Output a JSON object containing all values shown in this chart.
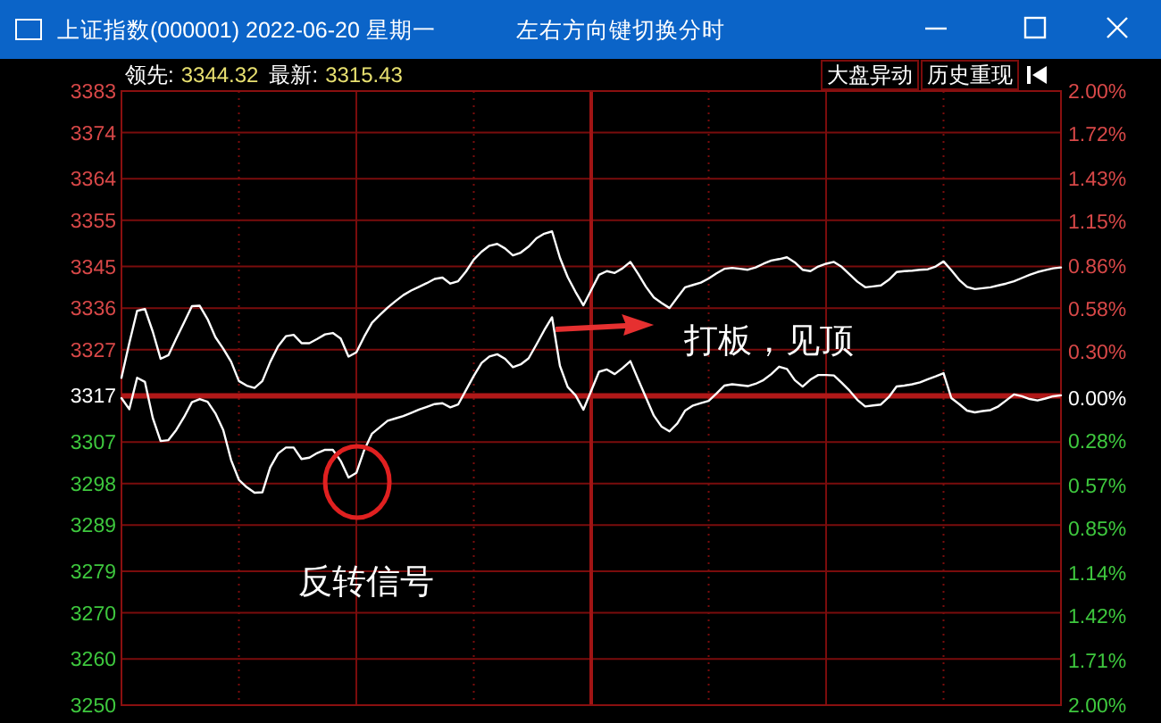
{
  "chart_data": {
    "type": "line",
    "title": "上证指数(000001) 2022-06-20 星期一",
    "subtitle": "左右方向键切换分时",
    "categories": [
      null,
      null,
      null,
      null,
      null,
      null,
      null,
      null,
      null,
      null,
      null,
      null,
      null,
      null,
      null,
      null,
      null,
      null,
      null,
      null,
      null,
      null,
      null,
      null,
      null,
      null,
      null,
      null,
      null,
      null,
      null,
      null,
      null,
      null,
      null,
      null,
      null,
      null,
      null,
      null,
      null,
      null,
      null,
      null,
      null,
      null,
      null,
      null,
      null,
      null,
      null,
      null,
      null,
      null,
      null,
      null,
      null,
      null,
      null,
      null,
      null,
      null,
      null,
      null,
      null,
      null,
      null,
      null,
      null,
      null,
      null,
      null,
      null,
      null,
      null,
      null,
      null,
      null,
      null,
      null,
      null,
      null,
      null,
      null,
      null,
      null,
      null,
      null,
      null,
      null,
      null,
      null,
      null,
      null,
      null,
      null,
      null,
      null,
      null,
      null,
      null,
      null,
      null,
      null,
      null,
      null,
      null,
      null,
      null,
      null,
      null,
      null,
      null,
      null,
      null,
      null,
      null,
      null,
      null,
      null,
      null
    ],
    "tick_labels": "y",
    "ylim": [
      3250,
      3383
    ],
    "yticks": [
      3383,
      3374,
      3364,
      3355,
      3345,
      3336,
      3327,
      3317,
      3307,
      3298,
      3289,
      3279,
      3270,
      3260,
      3250
    ],
    "y2lim": [
      -2,
      2
    ],
    "y2ticks": [
      {
        "value": 2.0,
        "label": "2.00%"
      },
      {
        "value": 1.72,
        "label": "1.72%"
      },
      {
        "value": 1.43,
        "label": "1.43%"
      },
      {
        "value": 1.15,
        "label": "1.15%"
      },
      {
        "value": 0.86,
        "label": "0.86%"
      },
      {
        "value": 0.58,
        "label": "0.58%"
      },
      {
        "value": 0.3,
        "label": "0.30%"
      },
      {
        "value": 0,
        "label": "0.00%"
      },
      {
        "value": -0.28,
        "label": "0.28%"
      },
      {
        "value": -0.57,
        "label": "0.57%"
      },
      {
        "value": -0.85,
        "label": "0.85%"
      },
      {
        "value": -1.14,
        "label": "1.14%"
      },
      {
        "value": -1.42,
        "label": "1.42%"
      },
      {
        "value": -1.71,
        "label": "1.71%"
      },
      {
        "value": -2.0,
        "label": "2.00%"
      }
    ],
    "grid": true,
    "ref_lines": [
      {
        "axis": "y",
        "value": 3317,
        "color": "#b01818"
      }
    ],
    "series": [
      {
        "color": "#ffffff",
        "values": [
          3320.9,
          3328.4,
          3335.4,
          3335.8,
          3330.9,
          3325.0,
          3325.8,
          3329.4,
          3332.9,
          3336.4,
          3336.5,
          3333.6,
          3329.7,
          3327.2,
          3324.4,
          3320.2,
          3319.2,
          3318.7,
          3320.2,
          3324.3,
          3327.7,
          3329.9,
          3330.2,
          3328.4,
          3328.4,
          3329.3,
          3330.3,
          3330.6,
          3329.4,
          3325.5,
          3326.4,
          3329.8,
          3332.8,
          3334.5,
          3336.1,
          3337.5,
          3338.8,
          3339.8,
          3340.6,
          3341.4,
          3342.3,
          3342.6,
          3341.3,
          3341.8,
          3343.9,
          3346.5,
          3348.2,
          3349.5,
          3349.9,
          3348.9,
          3347.4,
          3348.0,
          3349.3,
          3351.1,
          3352.1,
          3352.6,
          3346.9,
          3342.7,
          3339.5,
          3336.6,
          3339.9,
          3343.2,
          3344.0,
          3343.6,
          3344.6,
          3346.0,
          3343.4,
          3340.6,
          3338.3,
          3337.1,
          3336.0,
          3338.3,
          3340.5,
          3341.0,
          3341.5,
          3342.4,
          3343.5,
          3344.5,
          3344.7,
          3344.5,
          3344.3,
          3344.8,
          3345.6,
          3346.3,
          3346.6,
          3347.0,
          3345.9,
          3344.3,
          3344.0,
          3345.0,
          3345.6,
          3346.0,
          3344.9,
          3343.3,
          3341.7,
          3340.5,
          3340.7,
          3340.9,
          3342.1,
          3343.8,
          3344.0,
          3344.1,
          3344.3,
          3344.4,
          3345.0,
          3346.1,
          3344.2,
          3342.1,
          3340.6,
          3340.1,
          3340.3,
          3340.5,
          3340.9,
          3341.3,
          3341.8,
          3342.5,
          3343.2,
          3343.8,
          3344.2,
          3344.6,
          3344.8
        ]
      },
      {
        "color": "#ffffff",
        "values": [
          3316.5,
          3314.1,
          3320.9,
          3320.0,
          3312.2,
          3307.2,
          3307.4,
          3309.6,
          3312.4,
          3315.6,
          3316.3,
          3315.7,
          3313.2,
          3309.6,
          3303.1,
          3298.8,
          3297.2,
          3296.0,
          3296.1,
          3301.5,
          3304.5,
          3305.8,
          3305.8,
          3303.3,
          3303.6,
          3304.6,
          3305.3,
          3305.3,
          3302.9,
          3299.3,
          3300.3,
          3305.2,
          3308.8,
          3310.2,
          3311.6,
          3312.1,
          3312.6,
          3313.3,
          3314.0,
          3314.6,
          3315.2,
          3315.4,
          3314.5,
          3315.1,
          3318.2,
          3321.3,
          3324.1,
          3325.5,
          3326.0,
          3325.0,
          3323.2,
          3323.8,
          3325.1,
          3328.1,
          3331.2,
          3334.0,
          3323.5,
          3318.9,
          3317.1,
          3314.0,
          3318.1,
          3322.2,
          3322.7,
          3321.7,
          3323.0,
          3324.5,
          3320.5,
          3316.6,
          3312.7,
          3310.3,
          3309.3,
          3311.0,
          3313.8,
          3314.9,
          3315.4,
          3315.9,
          3317.5,
          3319.2,
          3319.5,
          3319.3,
          3319.1,
          3319.6,
          3320.4,
          3321.7,
          3323.3,
          3322.8,
          3320.4,
          3319.0,
          3320.5,
          3321.5,
          3321.5,
          3321.4,
          3319.8,
          3318.1,
          3316.1,
          3314.7,
          3314.9,
          3315.1,
          3316.7,
          3319.0,
          3319.2,
          3319.5,
          3319.9,
          3320.6,
          3321.2,
          3321.9,
          3316.5,
          3315.2,
          3313.8,
          3313.4,
          3313.7,
          3313.9,
          3314.7,
          3316.0,
          3317.3,
          3316.9,
          3316.3,
          3316.0,
          3316.4,
          3316.9,
          3317.1
        ]
      }
    ],
    "annotations": [
      "反转信号",
      "打板，见顶",
      "领先:",
      "3344.32",
      "最新:",
      "3315.43",
      "大盘异动",
      "历史重现"
    ]
  }
}
